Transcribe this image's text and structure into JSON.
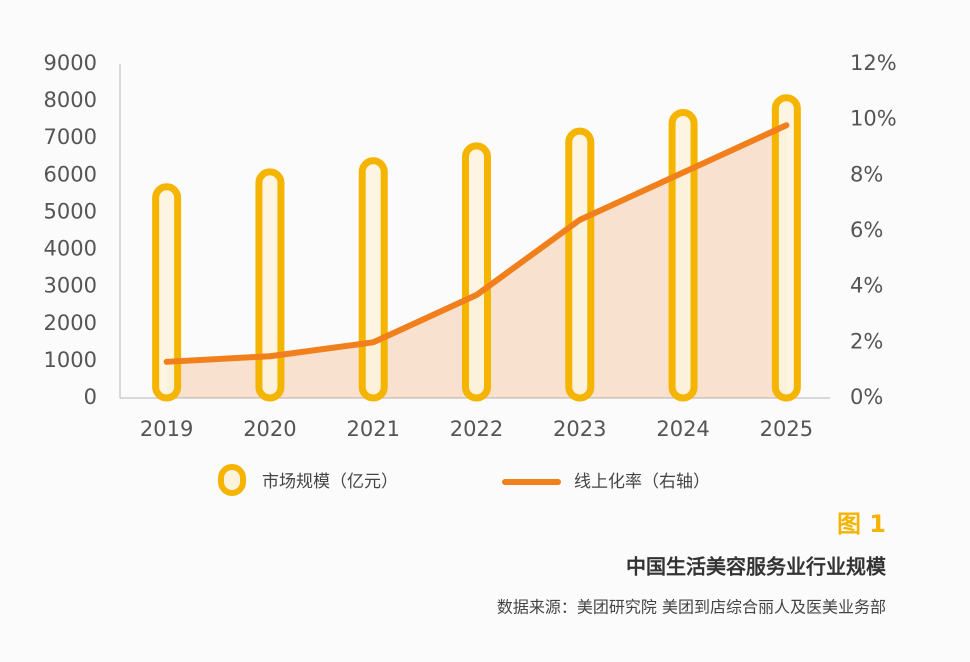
{
  "chart_data": {
    "type": "bar-line",
    "figure_label": "图 1",
    "title": "中国生活美容服务业行业规模",
    "source": "数据来源：美团研究院  美团到店综合丽人及医美业务部",
    "categories": [
      "2019",
      "2020",
      "2021",
      "2022",
      "2023",
      "2024",
      "2025"
    ],
    "series": [
      {
        "name": "市场规模（亿元）",
        "color": "#f5b400",
        "values": [
          5800,
          6200,
          6500,
          6900,
          7300,
          7800,
          8200
        ]
      },
      {
        "name": "线上化率（右轴）",
        "color": "#f07f1c",
        "axis": "y2",
        "values": [
          1.3,
          1.5,
          2.0,
          3.7,
          6.4,
          8.1,
          9.8
        ]
      }
    ],
    "ylim": [
      0,
      9000
    ],
    "yticks": [
      0,
      1000,
      2000,
      3000,
      4000,
      5000,
      6000,
      7000,
      8000,
      9000
    ],
    "y2lim": [
      0,
      12
    ],
    "y2ticks": [
      {
        "value": 0,
        "label": "0%"
      },
      {
        "value": 2,
        "label": "2%"
      },
      {
        "value": 4,
        "label": "4%"
      },
      {
        "value": 6,
        "label": "6%"
      },
      {
        "value": 8,
        "label": "8%"
      },
      {
        "value": 10,
        "label": "10%"
      },
      {
        "value": 12,
        "label": "12%"
      }
    ]
  }
}
